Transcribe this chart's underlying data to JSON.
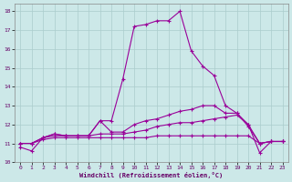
{
  "xlabel": "Windchill (Refroidissement éolien,°C)",
  "line_color": "#990099",
  "bg_color": "#cce8e8",
  "grid_color": "#aacccc",
  "xlim": [
    -0.5,
    23.5
  ],
  "ylim": [
    10,
    18.4
  ],
  "yticks": [
    10,
    11,
    12,
    13,
    14,
    15,
    16,
    17,
    18
  ],
  "xticks": [
    0,
    1,
    2,
    3,
    4,
    5,
    6,
    7,
    8,
    9,
    10,
    11,
    12,
    13,
    14,
    15,
    16,
    17,
    18,
    19,
    20,
    21,
    22,
    23
  ],
  "series1_x": [
    0,
    1,
    2,
    3,
    4,
    5,
    6,
    7,
    8,
    9,
    10,
    11,
    12,
    13,
    14,
    15,
    16,
    17,
    18,
    19,
    20,
    21,
    22,
    23
  ],
  "series1_y": [
    10.8,
    10.6,
    11.3,
    11.5,
    11.4,
    11.4,
    11.4,
    12.2,
    12.2,
    14.4,
    17.2,
    17.3,
    17.5,
    17.5,
    18.0,
    15.9,
    15.1,
    14.6,
    13.0,
    12.6,
    12.0,
    10.5,
    11.1,
    11.1
  ],
  "series2_x": [
    0,
    1,
    2,
    3,
    4,
    5,
    6,
    7,
    8,
    9,
    10,
    11,
    12,
    13,
    14,
    15,
    16,
    17,
    18,
    19,
    20,
    21,
    22,
    23
  ],
  "series2_y": [
    11.0,
    11.0,
    11.3,
    11.5,
    11.4,
    11.4,
    11.4,
    12.2,
    11.6,
    11.6,
    12.0,
    12.2,
    12.3,
    12.5,
    12.7,
    12.8,
    13.0,
    13.0,
    12.6,
    12.6,
    11.9,
    11.0,
    11.1,
    11.1
  ],
  "series3_x": [
    0,
    1,
    2,
    3,
    4,
    5,
    6,
    7,
    8,
    9,
    10,
    11,
    12,
    13,
    14,
    15,
    16,
    17,
    18,
    19,
    20,
    21,
    22,
    23
  ],
  "series3_y": [
    11.0,
    11.0,
    11.3,
    11.4,
    11.4,
    11.4,
    11.4,
    11.5,
    11.5,
    11.5,
    11.6,
    11.7,
    11.9,
    12.0,
    12.1,
    12.1,
    12.2,
    12.3,
    12.4,
    12.5,
    12.0,
    11.0,
    11.1,
    11.1
  ],
  "series4_x": [
    0,
    1,
    2,
    3,
    4,
    5,
    6,
    7,
    8,
    9,
    10,
    11,
    12,
    13,
    14,
    15,
    16,
    17,
    18,
    19,
    20,
    21,
    22,
    23
  ],
  "series4_y": [
    11.0,
    11.0,
    11.2,
    11.3,
    11.3,
    11.3,
    11.3,
    11.3,
    11.3,
    11.3,
    11.3,
    11.3,
    11.4,
    11.4,
    11.4,
    11.4,
    11.4,
    11.4,
    11.4,
    11.4,
    11.4,
    11.0,
    11.1,
    11.1
  ]
}
